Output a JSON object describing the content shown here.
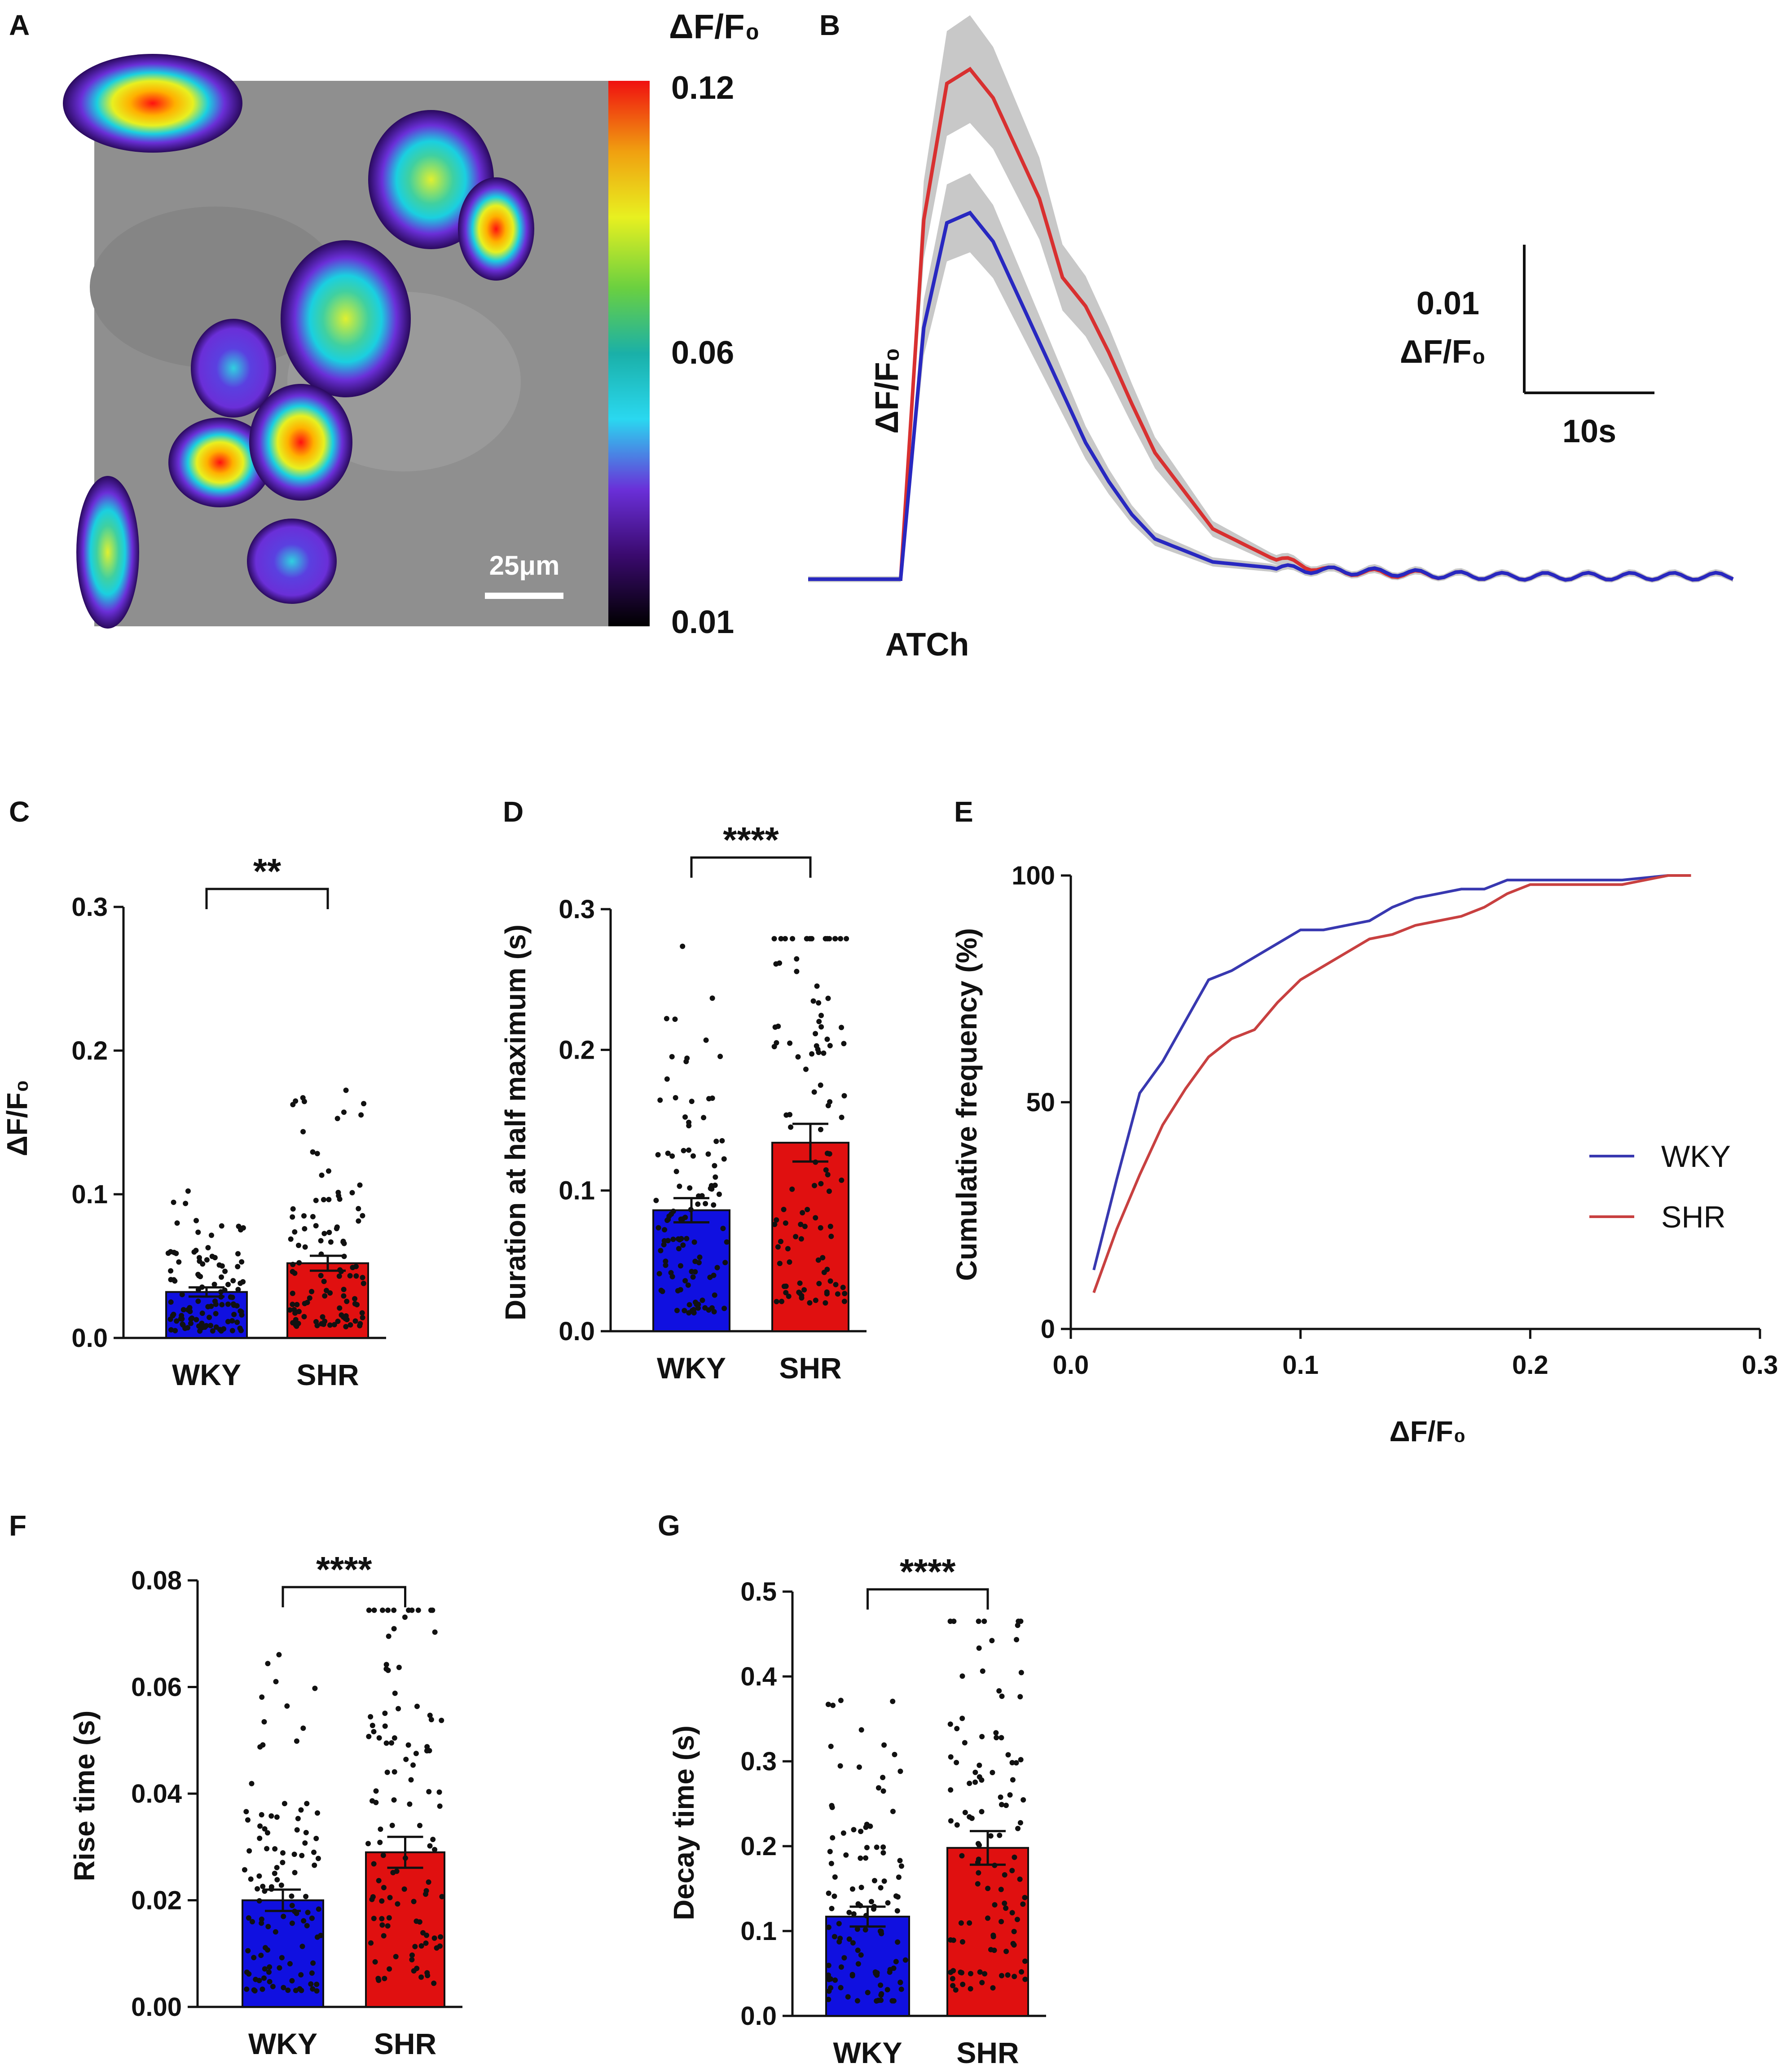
{
  "panels": {
    "A": {
      "label": "A",
      "colorbar_title": "ΔF/F₀",
      "colorbar_ticks": [
        "0.12",
        "0.06",
        "0.01"
      ],
      "scalebar_label": "25μm"
    },
    "B": {
      "label": "B",
      "ylabel": "ΔF/F₀",
      "stimulus_label": "ATCh",
      "scale_y_value": "0.01",
      "scale_y_unit": "ΔF/F₀",
      "scale_x_label": "10s"
    },
    "C": {
      "label": "C",
      "ylabel": "ΔF/F₀",
      "sig": "**"
    },
    "D": {
      "label": "D",
      "ylabel": "Duration at half maximum (s)",
      "sig": "****"
    },
    "E": {
      "label": "E",
      "ylabel": "Cumulative frequency (%)",
      "xlabel": "ΔF/F₀"
    },
    "F": {
      "label": "F",
      "ylabel": "Rise time (s)",
      "sig": "****"
    },
    "G": {
      "label": "G",
      "ylabel": "Decay time (s)",
      "sig": "****"
    }
  },
  "colors": {
    "wky": "#1010e0",
    "shr": "#e01010",
    "wky_line": "#3838b0",
    "shr_line": "#c84040",
    "sem": "#c8c8c8"
  },
  "chart_data": [
    {
      "id": "B",
      "type": "line",
      "title": "",
      "x_unit": "s",
      "y_unit": "ΔF/F₀",
      "series": [
        {
          "name": "WKY",
          "x": [
            0,
            2,
            4,
            6,
            8,
            10,
            12,
            14,
            16,
            18,
            20,
            22,
            24,
            26,
            28,
            30,
            35,
            40,
            45,
            50,
            55,
            60,
            65,
            70,
            75,
            80
          ],
          "y": [
            0,
            0,
            0,
            0,
            0,
            0.0175,
            0.0248,
            0.0255,
            0.0235,
            0.02,
            0.0165,
            0.013,
            0.0095,
            0.0068,
            0.0045,
            0.0028,
            0.0012,
            0.0008,
            0.0006,
            0.0005,
            0.0003,
            0.0002,
            0.0002,
            0.0002,
            0.0002,
            0.0002
          ]
        },
        {
          "name": "SHR",
          "x": [
            0,
            2,
            4,
            6,
            8,
            10,
            12,
            14,
            16,
            18,
            20,
            22,
            24,
            26,
            28,
            30,
            35,
            40,
            45,
            50,
            55,
            60,
            65,
            70,
            75,
            80
          ],
          "y": [
            0,
            0,
            0,
            0,
            0,
            0.025,
            0.0345,
            0.0355,
            0.0335,
            0.03,
            0.0265,
            0.021,
            0.019,
            0.0158,
            0.0122,
            0.0088,
            0.0035,
            0.0015,
            0.0006,
            0.0004,
            0.0003,
            0.0002,
            0.0002,
            0.0002,
            0.0002,
            0.0002
          ]
        }
      ]
    },
    {
      "id": "C",
      "type": "bar",
      "categories": [
        "WKY",
        "SHR"
      ],
      "values": [
        0.032,
        0.052
      ],
      "ylim": [
        0,
        0.3
      ],
      "yticks": [
        "0.0",
        "0.1",
        "0.2",
        "0.3"
      ],
      "ylabel": "ΔF/F₀"
    },
    {
      "id": "D",
      "type": "bar",
      "categories": [
        "WKY",
        "SHR"
      ],
      "values": [
        0.086,
        0.134
      ],
      "ylim": [
        0,
        0.3
      ],
      "yticks": [
        "0.0",
        "0.1",
        "0.2",
        "0.3"
      ],
      "ylabel": "Duration at half maximum (s)"
    },
    {
      "id": "E",
      "type": "line",
      "xlim": [
        0,
        0.3
      ],
      "ylim": [
        0,
        100
      ],
      "xticks": [
        "0.0",
        "0.1",
        "0.2",
        "0.3"
      ],
      "yticks": [
        "0",
        "50",
        "100"
      ],
      "xlabel": "ΔF/F₀",
      "ylabel": "Cumulative frequency (%)",
      "legend": "center-right",
      "series": [
        {
          "name": "WKY",
          "x": [
            0.01,
            0.02,
            0.03,
            0.04,
            0.05,
            0.06,
            0.07,
            0.08,
            0.09,
            0.1,
            0.11,
            0.12,
            0.13,
            0.14,
            0.15,
            0.16,
            0.17,
            0.18,
            0.19,
            0.2,
            0.22,
            0.24,
            0.26,
            0.27
          ],
          "y": [
            13,
            33,
            52,
            59,
            68,
            77,
            79,
            82,
            85,
            88,
            88,
            89,
            90,
            93,
            95,
            96,
            97,
            97,
            99,
            99,
            99,
            99,
            100,
            100
          ]
        },
        {
          "name": "SHR",
          "x": [
            0.01,
            0.02,
            0.03,
            0.04,
            0.05,
            0.06,
            0.07,
            0.08,
            0.09,
            0.1,
            0.11,
            0.12,
            0.13,
            0.14,
            0.15,
            0.16,
            0.17,
            0.18,
            0.19,
            0.2,
            0.22,
            0.24,
            0.26,
            0.27
          ],
          "y": [
            8,
            22,
            34,
            45,
            53,
            60,
            64,
            66,
            72,
            77,
            80,
            83,
            86,
            87,
            89,
            90,
            91,
            93,
            96,
            98,
            98,
            98,
            100,
            100
          ]
        }
      ]
    },
    {
      "id": "F",
      "type": "bar",
      "categories": [
        "WKY",
        "SHR"
      ],
      "values": [
        0.02,
        0.029
      ],
      "ylim": [
        0,
        0.08
      ],
      "yticks": [
        "0.00",
        "0.02",
        "0.04",
        "0.06",
        "0.08"
      ],
      "ylabel": "Rise time (s)"
    },
    {
      "id": "G",
      "type": "bar",
      "categories": [
        "WKY",
        "SHR"
      ],
      "values": [
        0.117,
        0.198
      ],
      "ylim": [
        0,
        0.5
      ],
      "yticks": [
        "0.0",
        "0.1",
        "0.2",
        "0.3",
        "0.4",
        "0.5"
      ],
      "ylabel": "Decay time (s)"
    }
  ]
}
